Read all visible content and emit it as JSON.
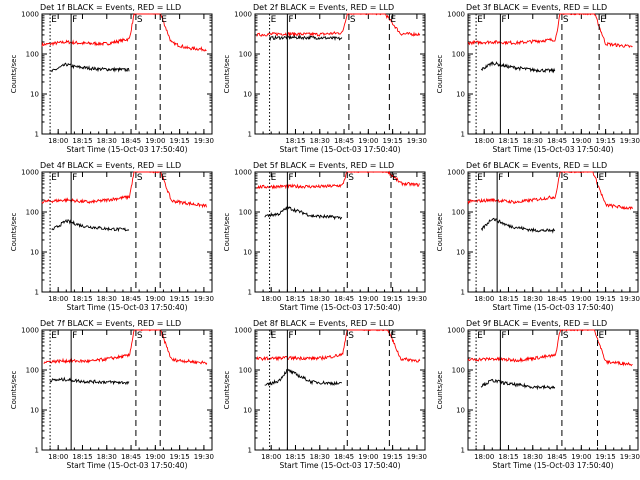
{
  "figure": {
    "colors": {
      "events": "#000000",
      "lld": "#ff0000",
      "frame": "#000000",
      "background": "#ffffff"
    }
  },
  "chart_data": [
    {
      "type": "line",
      "title": "Det 1f BLACK = Events, RED = LLD",
      "xlabel": "Start Time (15-Oct-03 17:50:40)",
      "ylabel": "Counts/sec",
      "yscale": "log",
      "ylim": [
        1,
        1000
      ],
      "x_ticks": [
        "18:00",
        "18:15",
        "18:30",
        "18:45",
        "19:00",
        "19:15",
        "19:30"
      ],
      "y_ticks": [
        "1",
        "10",
        "100",
        "1000"
      ],
      "markers": [
        {
          "label": "E",
          "time": "17:55",
          "style": "dotted"
        },
        {
          "label": "F",
          "time": "18:08",
          "style": "solid"
        },
        {
          "label": "S",
          "time": "18:48",
          "style": "dashed"
        },
        {
          "label": "E",
          "time": "19:03",
          "style": "dashed"
        }
      ],
      "series": [
        {
          "color": "#ff0000",
          "x": [
            "17:50",
            "18:05",
            "18:15",
            "18:30",
            "18:44",
            "18:47",
            "19:03",
            "19:10",
            "19:20",
            "19:32"
          ],
          "y": [
            170,
            200,
            185,
            180,
            240,
            1050,
            1050,
            190,
            140,
            130
          ]
        },
        {
          "color": "#000000",
          "x": [
            "17:55",
            "18:05",
            "18:10",
            "18:25",
            "18:44"
          ],
          "y": [
            35,
            55,
            48,
            42,
            40
          ]
        }
      ]
    },
    {
      "type": "line",
      "title": "Det 2f BLACK = Events, RED = LLD",
      "xlabel": "Start Time (15-Oct-03 17:50:40)",
      "ylabel": "Counts/sec",
      "yscale": "log",
      "ylim": [
        1,
        1000
      ],
      "x_ticks": [
        "18:15",
        "18:30",
        "18:45",
        "19:00",
        "19:15",
        "19:30"
      ],
      "y_ticks": [
        "1",
        "10",
        "100",
        "1000"
      ],
      "markers": [
        {
          "label": "E",
          "time": "17:59",
          "style": "dotted"
        },
        {
          "label": "F",
          "time": "18:10",
          "style": "solid"
        },
        {
          "label": "S",
          "time": "18:48",
          "style": "dashed"
        },
        {
          "label": "E",
          "time": "19:13",
          "style": "dashed"
        }
      ],
      "series": [
        {
          "color": "#ff0000",
          "x": [
            "17:51",
            "18:05",
            "18:30",
            "18:44",
            "18:47",
            "19:10",
            "19:20",
            "19:32"
          ],
          "y": [
            300,
            320,
            310,
            340,
            1050,
            1050,
            320,
            310
          ]
        },
        {
          "color": "#000000",
          "x": [
            "17:59",
            "18:10",
            "18:30",
            "18:44"
          ],
          "y": [
            250,
            260,
            255,
            240
          ]
        }
      ]
    },
    {
      "type": "line",
      "title": "Det 3f BLACK = Events, RED = LLD",
      "xlabel": "Start Time (15-Oct-03 17:50:40)",
      "ylabel": "Counts/sec",
      "yscale": "log",
      "ylim": [
        1,
        1000
      ],
      "x_ticks": [
        "18:00",
        "18:15",
        "18:30",
        "18:45",
        "19:00",
        "19:15",
        "19:30"
      ],
      "y_ticks": [
        "1",
        "10",
        "100",
        "1000"
      ],
      "markers": [
        {
          "label": "E",
          "time": "17:55",
          "style": "dotted"
        },
        {
          "label": "F",
          "time": "18:10",
          "style": "solid"
        },
        {
          "label": "S",
          "time": "18:48",
          "style": "dashed"
        },
        {
          "label": "E",
          "time": "19:11",
          "style": "dashed"
        }
      ],
      "series": [
        {
          "color": "#ff0000",
          "x": [
            "17:50",
            "18:05",
            "18:20",
            "18:44",
            "18:47",
            "19:08",
            "19:15",
            "19:32"
          ],
          "y": [
            190,
            200,
            190,
            230,
            1050,
            1050,
            180,
            150
          ]
        },
        {
          "color": "#000000",
          "x": [
            "17:58",
            "18:05",
            "18:15",
            "18:30",
            "18:44"
          ],
          "y": [
            40,
            60,
            48,
            40,
            38
          ]
        }
      ]
    },
    {
      "type": "line",
      "title": "Det 4f BLACK = Events, RED = LLD",
      "xlabel": "Start Time (15-Oct-03 17:50:40)",
      "ylabel": "Counts/sec",
      "yscale": "log",
      "ylim": [
        1,
        1000
      ],
      "x_ticks": [
        "18:00",
        "18:15",
        "18:30",
        "18:45",
        "19:00",
        "19:15",
        "19:30"
      ],
      "y_ticks": [
        "1",
        "10",
        "100",
        "1000"
      ],
      "markers": [
        {
          "label": "E",
          "time": "17:55",
          "style": "dotted"
        },
        {
          "label": "F",
          "time": "18:08",
          "style": "solid"
        },
        {
          "label": "S",
          "time": "18:48",
          "style": "dashed"
        },
        {
          "label": "E",
          "time": "19:03",
          "style": "dashed"
        }
      ],
      "series": [
        {
          "color": "#ff0000",
          "x": [
            "17:50",
            "18:05",
            "18:20",
            "18:44",
            "18:47",
            "19:03",
            "19:10",
            "19:32"
          ],
          "y": [
            180,
            200,
            175,
            240,
            1050,
            1050,
            190,
            140
          ]
        },
        {
          "color": "#000000",
          "x": [
            "17:56",
            "18:05",
            "18:15",
            "18:30",
            "18:44"
          ],
          "y": [
            35,
            60,
            45,
            38,
            36
          ]
        }
      ]
    },
    {
      "type": "line",
      "title": "Det 5f BLACK = Events, RED = LLD",
      "xlabel": "Start Time (15-Oct-03 17:50:40)",
      "ylabel": "Counts/sec",
      "yscale": "log",
      "ylim": [
        1,
        1000
      ],
      "x_ticks": [
        "18:00",
        "18:15",
        "18:30",
        "18:45",
        "19:00",
        "19:15",
        "19:30"
      ],
      "y_ticks": [
        "1",
        "10",
        "100",
        "1000"
      ],
      "markers": [
        {
          "label": "E",
          "time": "17:59",
          "style": "dotted"
        },
        {
          "label": "F",
          "time": "18:10",
          "style": "solid"
        },
        {
          "label": "S",
          "time": "18:47",
          "style": "dashed"
        },
        {
          "label": "E",
          "time": "19:14",
          "style": "dashed"
        }
      ],
      "series": [
        {
          "color": "#ff0000",
          "x": [
            "17:51",
            "18:10",
            "18:30",
            "18:44",
            "18:47",
            "19:12",
            "19:20",
            "19:32"
          ],
          "y": [
            420,
            440,
            430,
            460,
            1050,
            1050,
            520,
            470
          ]
        },
        {
          "color": "#000000",
          "x": [
            "17:56",
            "18:05",
            "18:10",
            "18:25",
            "18:44"
          ],
          "y": [
            80,
            90,
            130,
            80,
            72
          ]
        }
      ]
    },
    {
      "type": "line",
      "title": "Det 6f BLACK = Events, RED = LLD",
      "xlabel": "Start Time (15-Oct-03 17:50:40)",
      "ylabel": "Counts/sec",
      "yscale": "log",
      "ylim": [
        1,
        1000
      ],
      "x_ticks": [
        "18:00",
        "18:15",
        "18:30",
        "18:45",
        "19:00",
        "19:15",
        "19:30"
      ],
      "y_ticks": [
        "1",
        "10",
        "100",
        "1000"
      ],
      "markers": [
        {
          "label": "E",
          "time": "17:55",
          "style": "dotted"
        },
        {
          "label": "F",
          "time": "18:08",
          "style": "solid"
        },
        {
          "label": "S",
          "time": "18:48",
          "style": "dashed"
        },
        {
          "label": "E",
          "time": "19:10",
          "style": "dashed"
        }
      ],
      "series": [
        {
          "color": "#ff0000",
          "x": [
            "17:50",
            "18:05",
            "18:20",
            "18:44",
            "18:47",
            "19:07",
            "19:15",
            "19:32"
          ],
          "y": [
            180,
            200,
            175,
            240,
            1050,
            1050,
            150,
            120
          ]
        },
        {
          "color": "#000000",
          "x": [
            "17:58",
            "18:05",
            "18:15",
            "18:30",
            "18:44"
          ],
          "y": [
            35,
            70,
            45,
            35,
            34
          ]
        }
      ]
    },
    {
      "type": "line",
      "title": "Det 7f BLACK = Events, RED = LLD",
      "xlabel": "Start Time (15-Oct-03 17:50:40)",
      "ylabel": "Counts/sec",
      "yscale": "log",
      "ylim": [
        1,
        1000
      ],
      "x_ticks": [
        "18:00",
        "18:15",
        "18:30",
        "18:45",
        "19:00",
        "19:15",
        "19:30"
      ],
      "y_ticks": [
        "1",
        "10",
        "100",
        "1000"
      ],
      "markers": [
        {
          "label": "E",
          "time": "17:55",
          "style": "dotted"
        },
        {
          "label": "F",
          "time": "18:08",
          "style": "solid"
        },
        {
          "label": "S",
          "time": "18:48",
          "style": "dashed"
        },
        {
          "label": "E",
          "time": "19:03",
          "style": "dashed"
        }
      ],
      "series": [
        {
          "color": "#ff0000",
          "x": [
            "17:51",
            "18:05",
            "18:20",
            "18:44",
            "18:47",
            "19:03",
            "19:10",
            "19:32"
          ],
          "y": [
            160,
            170,
            165,
            230,
            1050,
            1050,
            180,
            150
          ]
        },
        {
          "color": "#000000",
          "x": [
            "17:55",
            "18:05",
            "18:15",
            "18:30",
            "18:44"
          ],
          "y": [
            55,
            58,
            52,
            50,
            48
          ]
        }
      ]
    },
    {
      "type": "line",
      "title": "Det 8f BLACK = Events, RED = LLD",
      "xlabel": "Start Time (15-Oct-03 17:50:40)",
      "ylabel": "Counts/sec",
      "yscale": "log",
      "ylim": [
        1,
        1000
      ],
      "x_ticks": [
        "18:00",
        "18:15",
        "18:30",
        "18:45",
        "19:00",
        "19:15",
        "19:30"
      ],
      "y_ticks": [
        "1",
        "10",
        "100",
        "1000"
      ],
      "markers": [
        {
          "label": "E",
          "time": "17:59",
          "style": "dotted"
        },
        {
          "label": "F",
          "time": "18:10",
          "style": "solid"
        },
        {
          "label": "S",
          "time": "18:47",
          "style": "dashed"
        },
        {
          "label": "E",
          "time": "19:13",
          "style": "dashed"
        }
      ],
      "series": [
        {
          "color": "#ff0000",
          "x": [
            "17:51",
            "18:10",
            "18:30",
            "18:44",
            "18:47",
            "19:12",
            "19:20",
            "19:32"
          ],
          "y": [
            190,
            200,
            195,
            240,
            1050,
            1050,
            190,
            170
          ]
        },
        {
          "color": "#000000",
          "x": [
            "17:56",
            "18:05",
            "18:10",
            "18:25",
            "18:44"
          ],
          "y": [
            40,
            55,
            100,
            50,
            45
          ]
        }
      ]
    },
    {
      "type": "line",
      "title": "Det 9f BLACK = Events, RED = LLD",
      "xlabel": "Start Time (15-Oct-03 17:50:40)",
      "ylabel": "Counts/sec",
      "yscale": "log",
      "ylim": [
        1,
        1000
      ],
      "x_ticks": [
        "18:00",
        "18:15",
        "18:30",
        "18:45",
        "19:00",
        "19:15",
        "19:30"
      ],
      "y_ticks": [
        "1",
        "10",
        "100",
        "1000"
      ],
      "markers": [
        {
          "label": "E",
          "time": "17:55",
          "style": "dotted"
        },
        {
          "label": "F",
          "time": "18:10",
          "style": "solid"
        },
        {
          "label": "S",
          "time": "18:48",
          "style": "dashed"
        },
        {
          "label": "E",
          "time": "19:10",
          "style": "dashed"
        }
      ],
      "series": [
        {
          "color": "#ff0000",
          "x": [
            "17:50",
            "18:05",
            "18:20",
            "18:44",
            "18:47",
            "19:08",
            "19:15",
            "19:32"
          ],
          "y": [
            180,
            190,
            175,
            230,
            1050,
            1050,
            160,
            140
          ]
        },
        {
          "color": "#000000",
          "x": [
            "17:58",
            "18:05",
            "18:15",
            "18:30",
            "18:44"
          ],
          "y": [
            40,
            55,
            45,
            38,
            36
          ]
        }
      ]
    }
  ]
}
